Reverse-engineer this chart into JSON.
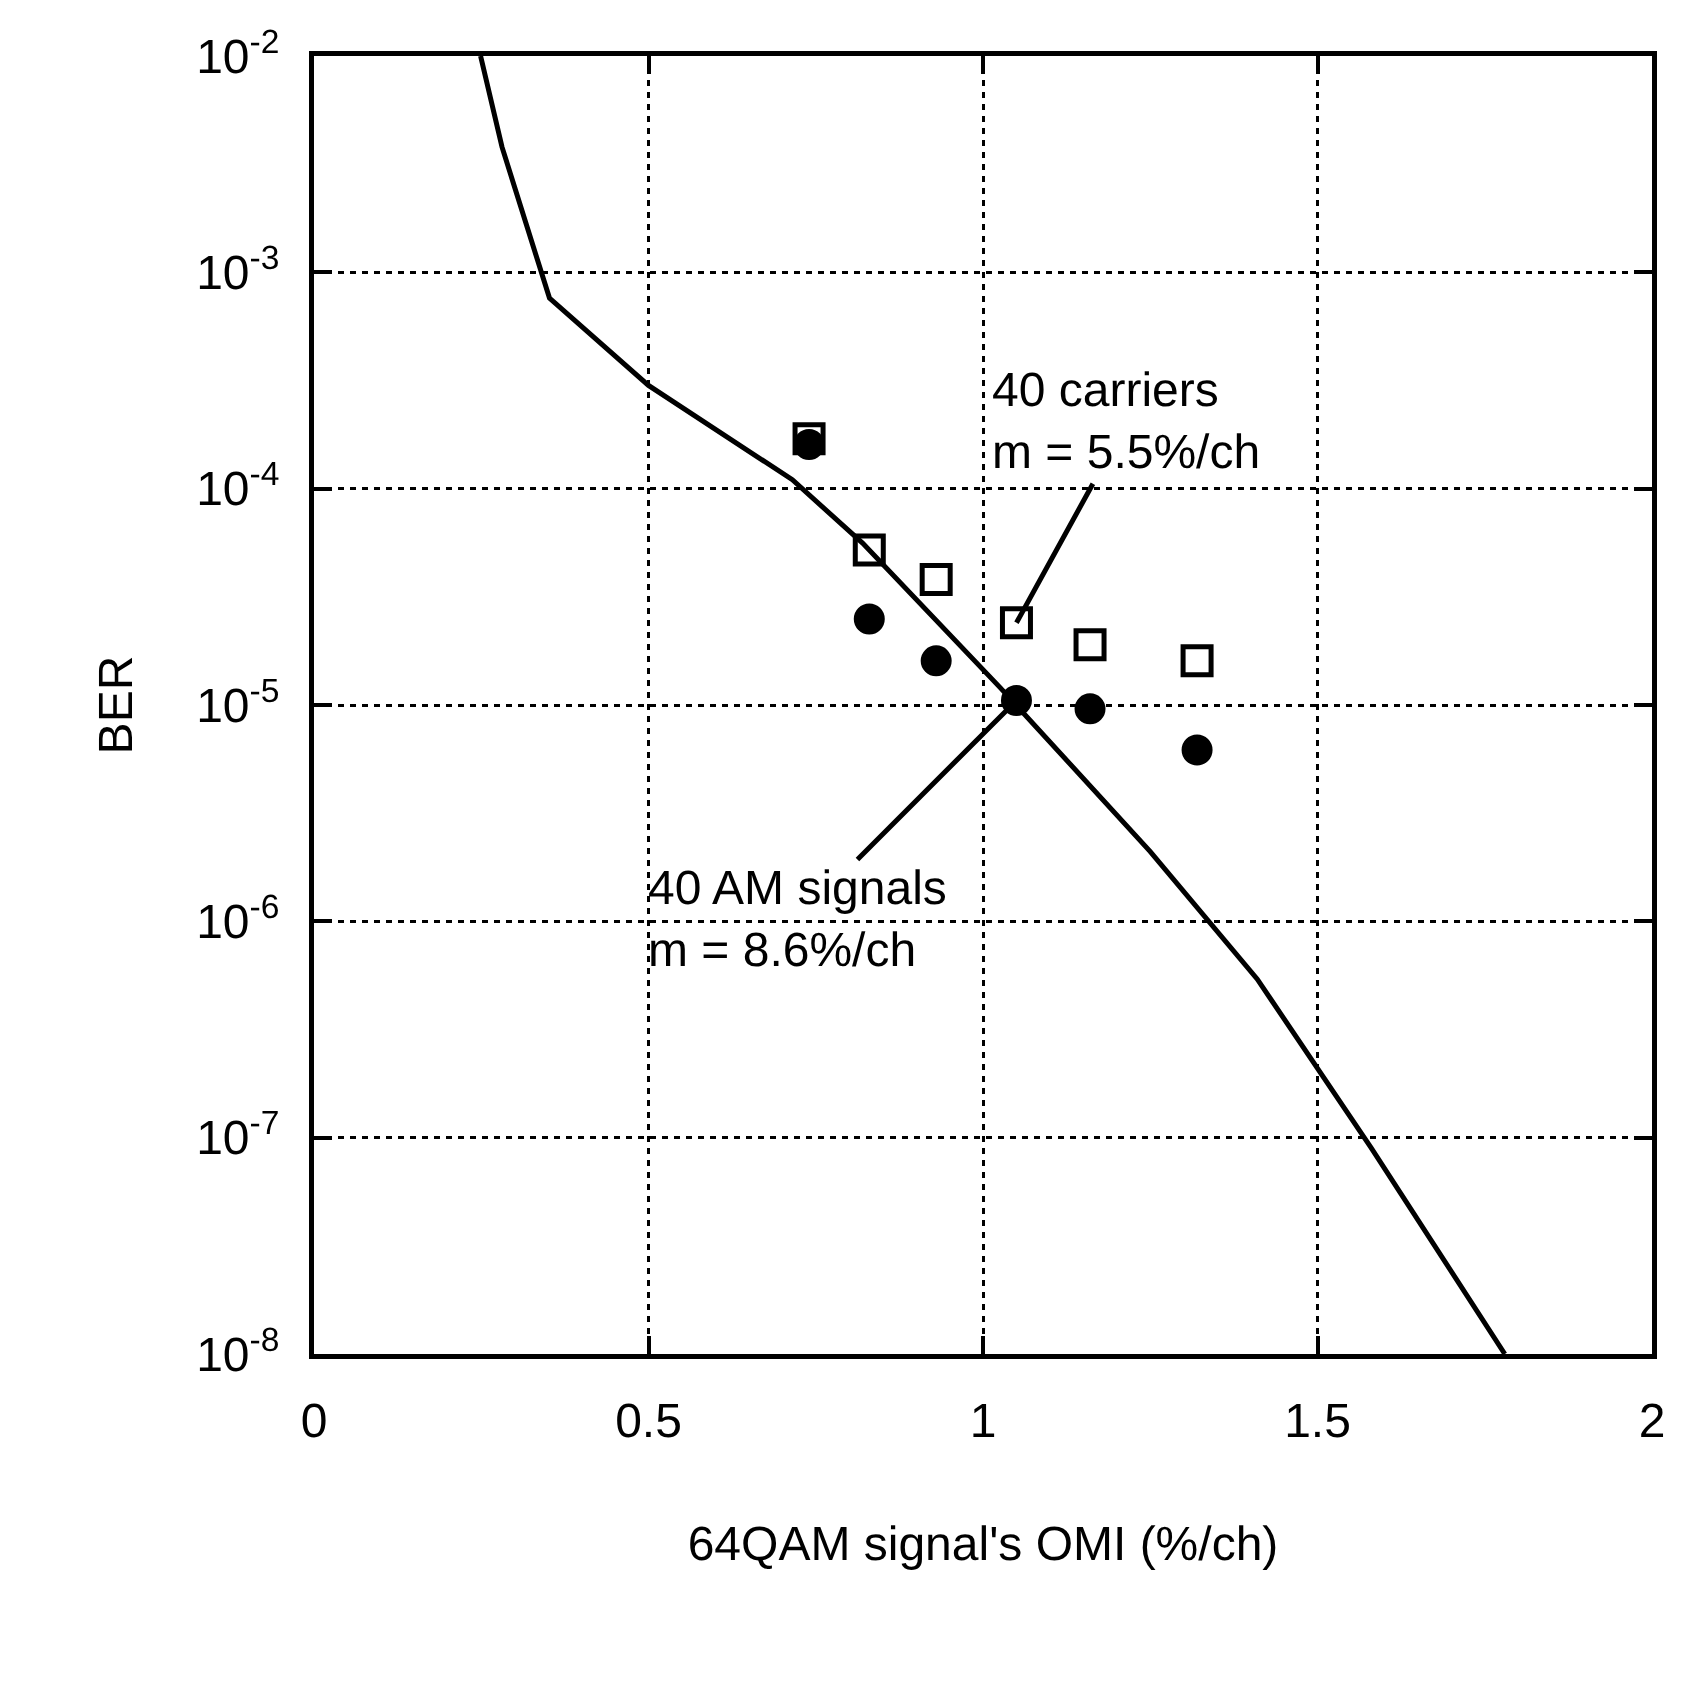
{
  "chart_data": {
    "type": "scatter",
    "xlabel": "64QAM signal's OMI (%/ch)",
    "ylabel": "BER",
    "log": "y",
    "grid": true,
    "xlim": [
      0,
      2
    ],
    "xticks": [
      0,
      0.5,
      1,
      1.5,
      2
    ],
    "ylim": [
      1e-08,
      0.01
    ],
    "yticks": [
      {
        "value": 1e-08,
        "label": "10$^{-8}$"
      },
      {
        "value": 1e-07,
        "label": "10$^{-7}$"
      },
      {
        "value": 1e-06,
        "label": "10$^{-6}$"
      },
      {
        "value": 1e-05,
        "label": "10$^{-5}$"
      },
      {
        "value": 0.0001,
        "label": "10$^{-4}$"
      },
      {
        "value": 0.001,
        "label": "10$^{-3}$"
      },
      {
        "value": 0.01,
        "label": "10$^{-2}$"
      }
    ],
    "series": [
      {
        "type": "line",
        "color": "#000000",
        "marker": "none",
        "line_style": "solid",
        "x": [
          0.249,
          0.281,
          0.352,
          0.5,
          0.715,
          0.82,
          1.026,
          1.25,
          1.41,
          1.58,
          1.78
        ],
        "values": [
          0.01,
          0.0038,
          0.00076,
          0.0003,
          0.00011,
          5.6e-05,
          1.2e-05,
          2.1e-06,
          5.4e-07,
          9e-08,
          1e-08
        ]
      },
      {
        "type": "scatter",
        "color": "#000000",
        "marker": "square",
        "x": [
          0.74,
          0.83,
          0.93,
          1.05,
          1.16,
          1.32
        ],
        "values": [
          0.00017,
          5.2e-05,
          3.8e-05,
          2.4e-05,
          1.9e-05,
          1.6e-05
        ]
      },
      {
        "type": "scatter",
        "color": "#000000",
        "marker": "circle",
        "x": [
          0.74,
          0.83,
          0.93,
          1.05,
          1.16,
          1.32
        ],
        "values": [
          0.00016,
          2.5e-05,
          1.6e-05,
          1.05e-05,
          9.6e-06,
          6.2e-06
        ]
      }
    ],
    "annotations": [
      {
        "text": "40 carriers\nm = 5.5%/ch",
        "x": 1.05,
        "y": 2.4e-05
      },
      {
        "text": "40 AM signals\nm = 8.6%/ch",
        "x": 1.05,
        "y": 1.05e-05
      }
    ]
  }
}
